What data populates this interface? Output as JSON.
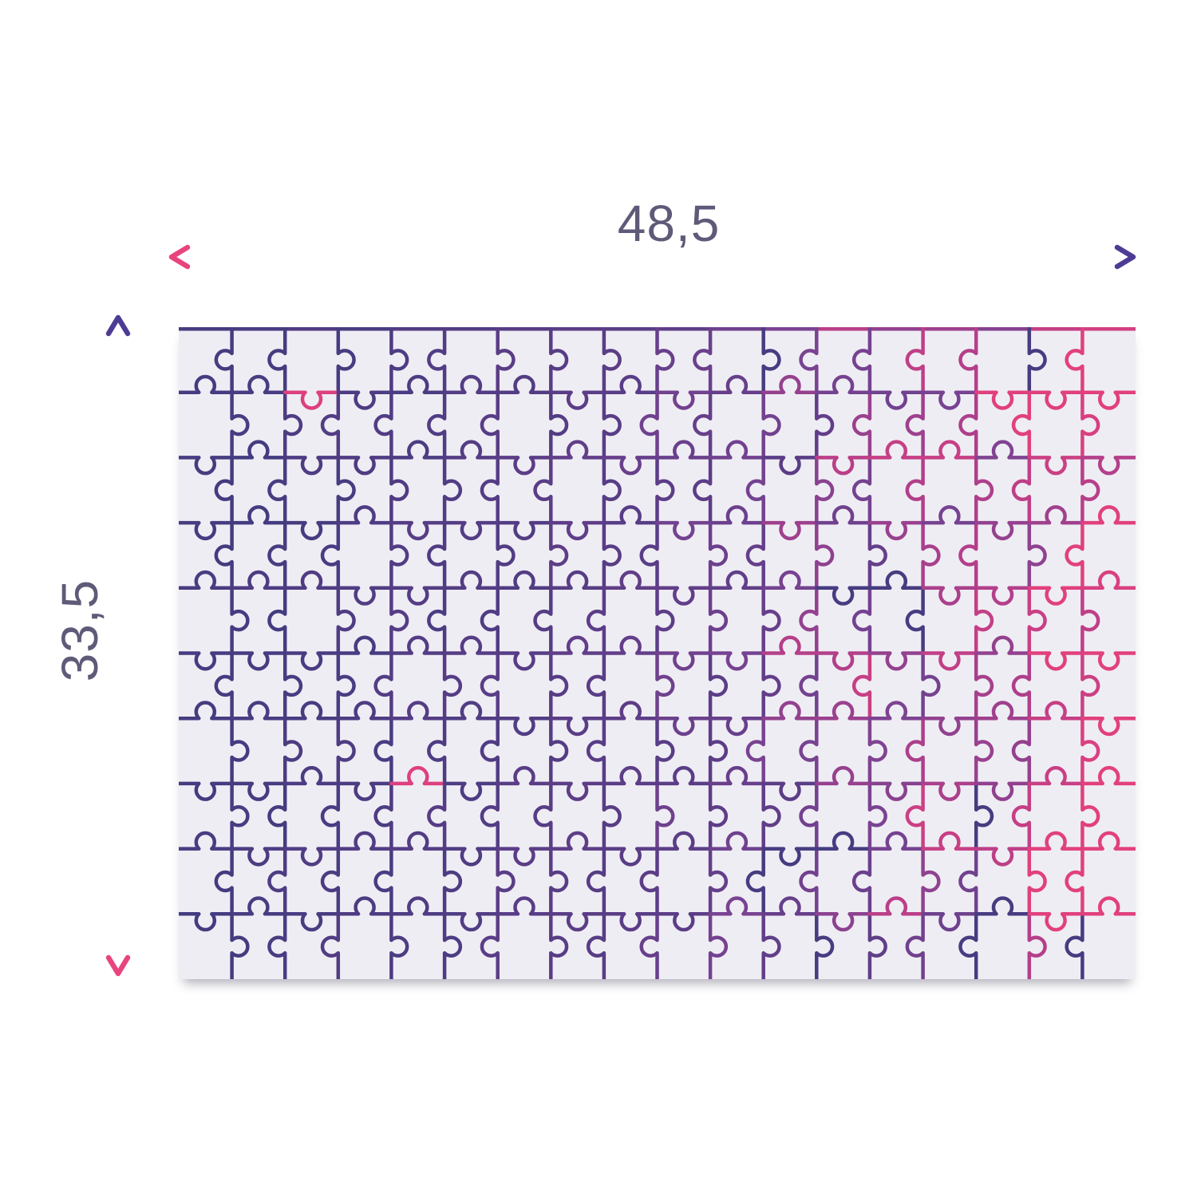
{
  "dimensions": {
    "width_label": "48,5",
    "height_label": "33,5"
  },
  "colors": {
    "label_text": "#5f5a78",
    "arrow_pink": "#e8457f",
    "arrow_violet": "#5b4196",
    "arrow_purple": "#4e3c94",
    "board_fill": "#efedf4",
    "board_shadow": "rgba(80,75,100,0.45)",
    "outline_navy": "#433c80",
    "outline_violet": "#5d3d87",
    "outline_purple": "#7a4392",
    "outline_magenta": "#b33f8a",
    "outline_pink": "#e1407e"
  },
  "puzzle": {
    "columns": 18,
    "rows": 10,
    "stroke_width": 4.5,
    "knob_neck": 8,
    "knob_radius": 11.5,
    "seed": 11
  }
}
